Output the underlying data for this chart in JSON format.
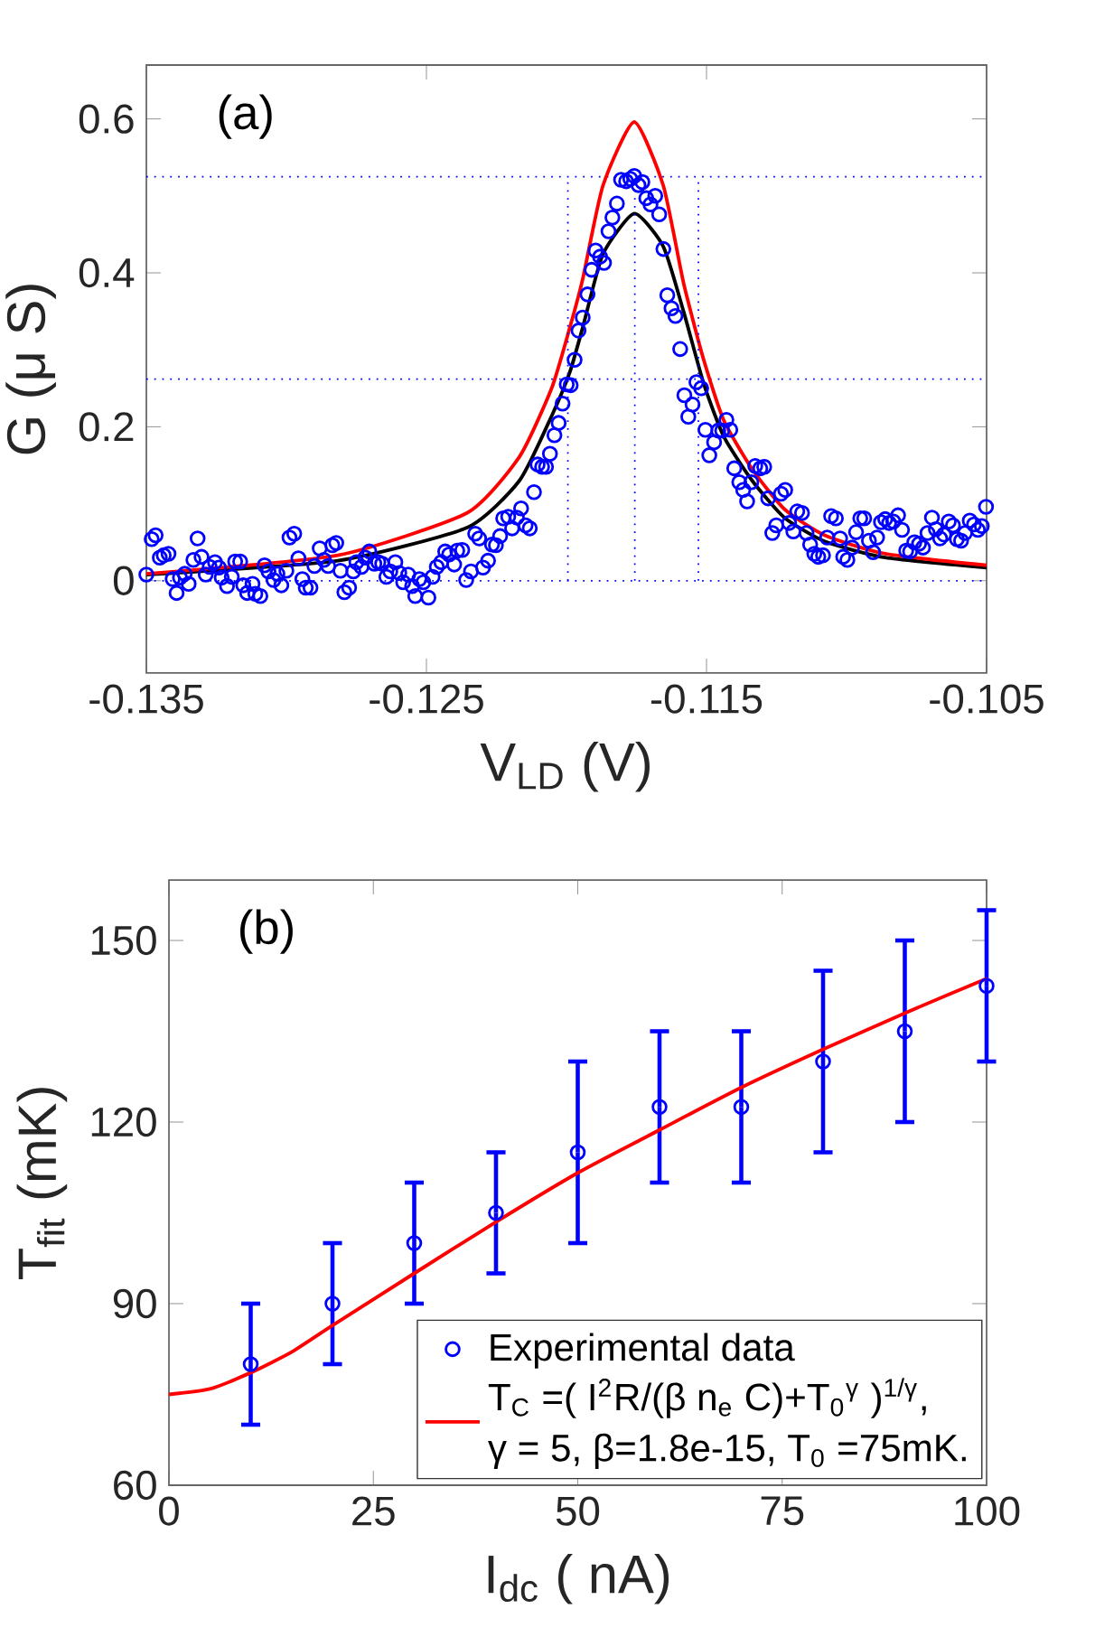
{
  "chart_data": [
    {
      "type": "scatter",
      "xlabel": "V$_{LD}$ (V)",
      "ylabel": "G (μ S)",
      "annotations": [
        "(a)"
      ],
      "xlim": [
        -0.135,
        -0.105
      ],
      "xticks": [
        -0.135,
        -0.125,
        -0.115,
        -0.105
      ],
      "ylim": [
        -0.12,
        0.67
      ],
      "yticks": [
        0,
        0.2,
        0.4,
        0.6
      ],
      "ref_lines": [
        {
          "axis": "y",
          "value": 0.525,
          "color": "#0000ff",
          "line_style": "dotted"
        },
        {
          "axis": "y",
          "value": 0.262,
          "color": "#0000ff",
          "line_style": "dotted"
        },
        {
          "axis": "y",
          "value": 0,
          "color": "#0000ff",
          "line_style": "dotted"
        }
      ],
      "series": [
        {
          "color": "#0000ff",
          "marker": "circle",
          "x": [
            -0.135,
            -0.13481,
            -0.13467,
            -0.13452,
            -0.13438,
            -0.13421,
            -0.13406,
            -0.13392,
            -0.1338,
            -0.13363,
            -0.13349,
            -0.13332,
            -0.13317,
            -0.13303,
            -0.13288,
            -0.13274,
            -0.13255,
            -0.13241,
            -0.13231,
            -0.13212,
            -0.13195,
            -0.13183,
            -0.13165,
            -0.13154,
            -0.1314,
            -0.13121,
            -0.13111,
            -0.13093,
            -0.13078,
            -0.13064,
            -0.13046,
            -0.13032,
            -0.13018,
            -0.13,
            -0.12989,
            -0.12972,
            -0.12957,
            -0.12943,
            -0.12931,
            -0.12914,
            -0.129,
            -0.12881,
            -0.12866,
            -0.12851,
            -0.12836,
            -0.12822,
            -0.12807,
            -0.12793,
            -0.12776,
            -0.12761,
            -0.1275,
            -0.12732,
            -0.12718,
            -0.12704,
            -0.12686,
            -0.12672,
            -0.12658,
            -0.12643,
            -0.12629,
            -0.12611,
            -0.12597,
            -0.12583,
            -0.12565,
            -0.12551,
            -0.1254,
            -0.12525,
            -0.12511,
            -0.12493,
            -0.12478,
            -0.12463,
            -0.12447,
            -0.12433,
            -0.12419,
            -0.12401,
            -0.1239,
            -0.12372,
            -0.12358,
            -0.12341,
            -0.12326,
            -0.12312,
            -0.12298,
            -0.1228,
            -0.12266,
            -0.12252,
            -0.12237,
            -0.12226,
            -0.12208,
            -0.12194,
            -0.12177,
            -0.12162,
            -0.12146,
            -0.12131,
            -0.12116,
            -0.12103,
            -0.12087,
            -0.12073,
            -0.12059,
            -0.12043,
            -0.12028,
            -0.12014,
            -0.11999,
            -0.11985,
            -0.11971,
            -0.11957,
            -0.11942,
            -0.11925,
            -0.1191,
            -0.11896,
            -0.1188,
            -0.11866,
            -0.1185,
            -0.11836,
            -0.1182,
            -0.11805,
            -0.11787,
            -0.11772,
            -0.11758,
            -0.11743,
            -0.11729,
            -0.11715,
            -0.117,
            -0.11683,
            -0.11669,
            -0.11654,
            -0.1164,
            -0.11625,
            -0.11611,
            -0.11594,
            -0.11579,
            -0.11565,
            -0.1155,
            -0.11536,
            -0.11519,
            -0.11504,
            -0.1149,
            -0.11473,
            -0.11458,
            -0.11444,
            -0.11429,
            -0.11415,
            -0.11401,
            -0.11383,
            -0.11369,
            -0.11355,
            -0.1134,
            -0.11326,
            -0.11308,
            -0.11294,
            -0.1128,
            -0.11265,
            -0.11251,
            -0.11234,
            -0.11219,
            -0.11205,
            -0.1119,
            -0.11176,
            -0.11159,
            -0.11143,
            -0.1113,
            -0.11115,
            -0.11101,
            -0.11084,
            -0.11069,
            -0.11055,
            -0.11038,
            -0.11023,
            -0.11012,
            -0.10997,
            -0.1098,
            -0.10966,
            -0.10951,
            -0.10937,
            -0.1092,
            -0.10905,
            -0.10891,
            -0.10877,
            -0.10862,
            -0.10848,
            -0.10833,
            -0.10816,
            -0.10802,
            -0.10787,
            -0.10773,
            -0.10758,
            -0.10741,
            -0.10727,
            -0.10711,
            -0.10695,
            -0.10681,
            -0.10666,
            -0.10652,
            -0.10635,
            -0.1062,
            -0.10606,
            -0.10591,
            -0.10577,
            -0.1056,
            -0.10545,
            -0.10531,
            -0.10517,
            -0.10502
          ],
          "values": [
            0.008,
            0.054,
            0.059,
            0.03,
            0.033,
            0.035,
            0.002,
            -0.016,
            0.004,
            0.009,
            -0.004,
            0.027,
            0.055,
            0.031,
            0.008,
            0.018,
            0.024,
            0.017,
            0.004,
            -0.007,
            0.005,
            0.025,
            0.025,
            -0.006,
            -0.016,
            -0.004,
            -0.017,
            -0.02,
            0.02,
            0.012,
            0.001,
            0.009,
            -0.006,
            0.013,
            0.056,
            0.061,
            0.029,
            0.002,
            -0.009,
            -0.009,
            0.019,
            0.042,
            0.027,
            0.019,
            0.046,
            0.049,
            0.013,
            -0.015,
            -0.009,
            0.012,
            0.024,
            0.018,
            0.03,
            0.038,
            0.022,
            0.024,
            0.022,
            0.005,
            0.012,
            0.024,
            0.01,
            -0.002,
            0.008,
            -0.007,
            -0.02,
            0.002,
            -0.002,
            -0.022,
            0.005,
            0.018,
            0.024,
            0.038,
            0.034,
            0.021,
            0.039,
            0.04,
            0.001,
            0.012,
            0.061,
            0.055,
            0.017,
            0.026,
            0.047,
            0.046,
            0.058,
            0.081,
            0.083,
            0.068,
            0.082,
            0.094,
            0.072,
            0.068,
            0.115,
            0.151,
            0.148,
            0.148,
            0.165,
            0.189,
            0.205,
            0.23,
            0.255,
            0.254,
            0.287,
            0.325,
            0.342,
            0.372,
            0.404,
            0.429,
            0.421,
            0.413,
            0.454,
            0.472,
            0.49,
            0.521,
            0.519,
            0.522,
            0.526,
            0.514,
            0.518,
            0.497,
            0.489,
            0.5,
            0.476,
            0.431,
            0.371,
            0.354,
            0.344,
            0.301,
            0.241,
            0.213,
            0.229,
            0.258,
            0.25,
            0.196,
            0.163,
            0.18,
            0.195,
            0.195,
            0.209,
            0.196,
            0.146,
            0.128,
            0.118,
            0.103,
            0.128,
            0.149,
            0.146,
            0.148,
            0.107,
            0.062,
            0.072,
            0.113,
            0.118,
            0.075,
            0.064,
            0.09,
            0.088,
            0.062,
            0.047,
            0.035,
            0.031,
            0.033,
            0.056,
            0.084,
            0.081,
            0.055,
            0.031,
            0.027,
            0.043,
            0.063,
            0.081,
            0.081,
            0.052,
            0.037,
            0.056,
            0.076,
            0.08,
            0.075,
            0.077,
            0.085,
            0.066,
            0.039,
            0.038,
            0.05,
            0.048,
            0.043,
            0.062,
            0.082,
            0.067,
            0.055,
            0.06,
            0.077,
            0.072,
            0.054,
            0.052,
            0.062,
            0.078,
            0.073,
            0.066,
            0.071,
            0.096
          ]
        },
        {
          "type": "line",
          "color": "#000000",
          "x": [
            -0.135,
            -0.12816,
            -0.12355,
            -0.12168,
            -0.12053,
            -0.11988,
            -0.11942,
            -0.1187,
            -0.11758,
            -0.11654,
            -0.11582,
            -0.1151,
            -0.11438,
            -0.11337,
            -0.11222,
            -0.11078,
            -0.10862,
            -0.105
          ],
          "values": [
            0.008,
            0.026,
            0.069,
            0.13,
            0.214,
            0.271,
            0.329,
            0.424,
            0.477,
            0.434,
            0.35,
            0.256,
            0.187,
            0.13,
            0.082,
            0.051,
            0.03,
            0.017
          ]
        },
        {
          "type": "line",
          "color": "#ff0000",
          "x": [
            -0.135,
            -0.12816,
            -0.12355,
            -0.12168,
            -0.12053,
            -0.11988,
            -0.11942,
            -0.1187,
            -0.11758,
            -0.11654,
            -0.11582,
            -0.1151,
            -0.11438,
            -0.11337,
            -0.11222,
            -0.11078,
            -0.10862,
            -0.105
          ],
          "values": [
            0.009,
            0.033,
            0.088,
            0.161,
            0.25,
            0.329,
            0.392,
            0.513,
            0.596,
            0.513,
            0.387,
            0.287,
            0.208,
            0.145,
            0.093,
            0.059,
            0.035,
            0.02
          ]
        },
        {
          "type": "line",
          "color": "#0000ff",
          "line_style": "dotted",
          "x": [
            -0.11995,
            -0.11995
          ],
          "values": [
            0,
            0.525
          ]
        },
        {
          "type": "line",
          "color": "#0000ff",
          "line_style": "dotted",
          "x": [
            -0.11756,
            -0.11756
          ],
          "values": [
            0,
            0.525
          ]
        },
        {
          "type": "line",
          "color": "#0000ff",
          "line_style": "dotted",
          "x": [
            -0.11529,
            -0.11529
          ],
          "values": [
            0,
            0.525
          ]
        }
      ]
    },
    {
      "type": "scatter",
      "xlabel": "I$_{dc}$ ( nA)",
      "ylabel": "T$_{fit}$ (mK)",
      "annotations": [
        "(b)",
        "γ = 5, β=1.8e-15, T$_{0}$ =75mK."
      ],
      "xlim": [
        0,
        100
      ],
      "xticks": [
        0,
        25,
        50,
        75,
        100
      ],
      "ylim": [
        60,
        160
      ],
      "yticks": [
        60,
        90,
        120,
        150
      ],
      "legend": "bottom right",
      "series": [
        {
          "name": "Experimental data",
          "color": "#0000ff",
          "marker": "circle",
          "x": [
            10,
            20,
            30,
            40,
            50,
            60,
            70,
            80,
            90,
            100
          ],
          "values": [
            80,
            90,
            100,
            105,
            115,
            122.5,
            122.5,
            130,
            135,
            142.5
          ],
          "errors": [
            [
              70,
              90
            ],
            [
              80,
              100
            ],
            [
              90,
              110
            ],
            [
              95,
              115
            ],
            [
              100,
              130
            ],
            [
              110,
              135
            ],
            [
              110,
              135
            ],
            [
              115,
              145
            ],
            [
              120,
              150
            ],
            [
              130,
              155
            ]
          ]
        },
        {
          "name": "T$_{C}$ =( I$^{2}$R/(β n$_{e}$ C)+T$_{0}$$^{γ}$ )$^{1/γ}$,",
          "type": "line",
          "color": "#ff0000",
          "x": [
            0,
            5,
            10,
            15,
            20,
            30,
            40,
            50,
            60,
            70,
            80,
            90,
            100
          ],
          "values": [
            75,
            75.9,
            78.6,
            82,
            86.4,
            95,
            103.5,
            111.6,
            118.7,
            125.7,
            132,
            138,
            143.7
          ]
        }
      ]
    }
  ]
}
